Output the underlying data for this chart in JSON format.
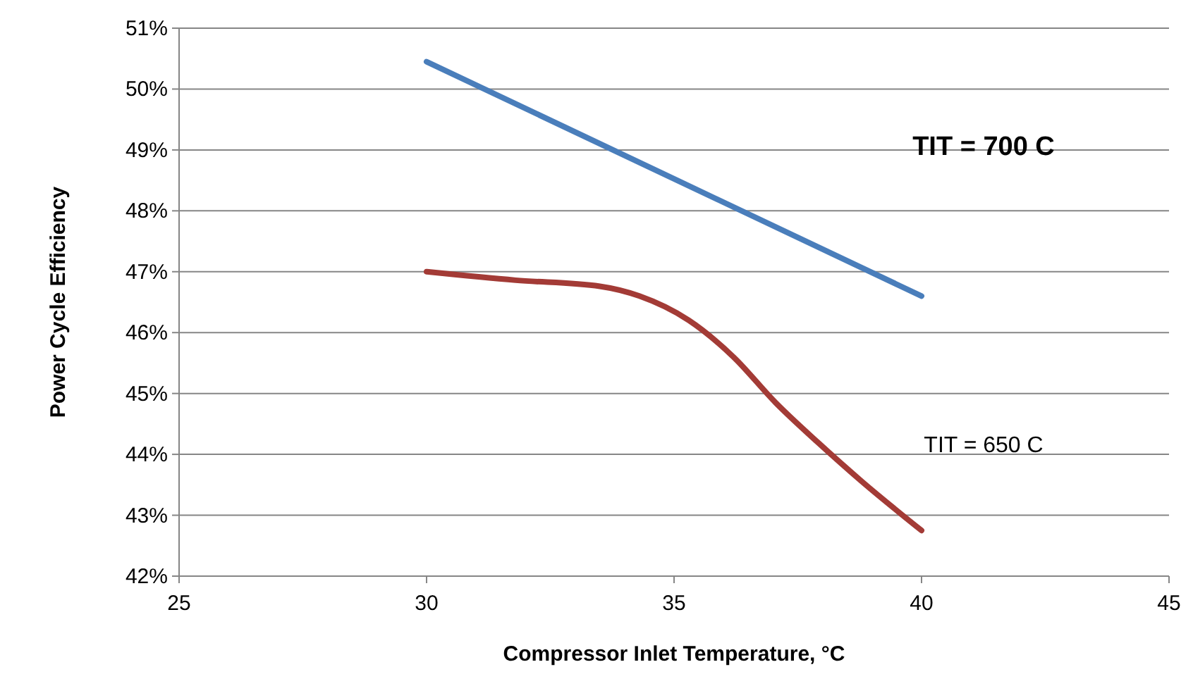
{
  "chart_data": {
    "type": "line",
    "xlabel": "Compressor Inlet Temperature, °C",
    "ylabel": "Power Cycle Efficiency",
    "xlim": [
      25,
      45
    ],
    "xticks": [
      25,
      30,
      35,
      40,
      45
    ],
    "ylim": [
      42,
      51
    ],
    "yticks": [
      {
        "value": 42,
        "label": "42%"
      },
      {
        "value": 43,
        "label": "43%"
      },
      {
        "value": 44,
        "label": "44%"
      },
      {
        "value": 45,
        "label": "45%"
      },
      {
        "value": 46,
        "label": "46%"
      },
      {
        "value": 47,
        "label": "47%"
      },
      {
        "value": 48,
        "label": "48%"
      },
      {
        "value": 49,
        "label": "49%"
      },
      {
        "value": 50,
        "label": "50%"
      },
      {
        "value": 51,
        "label": "51%"
      }
    ],
    "grid": "y",
    "marker": "none",
    "line_style": "solid",
    "series": [
      {
        "name": "TIT = 700 C",
        "color": "#4a7ebb",
        "x": [
          30,
          40
        ],
        "values": [
          50.45,
          46.6
        ]
      },
      {
        "name": "TIT = 650 C",
        "color": "#a33b36",
        "x": [
          30,
          31.8,
          33.5,
          34.3,
          35.3,
          36.2,
          37.05,
          37.9,
          38.8,
          40
        ],
        "values": [
          47.0,
          46.86,
          46.76,
          46.6,
          46.2,
          45.6,
          44.85,
          44.2,
          43.55,
          42.75
        ]
      }
    ]
  }
}
